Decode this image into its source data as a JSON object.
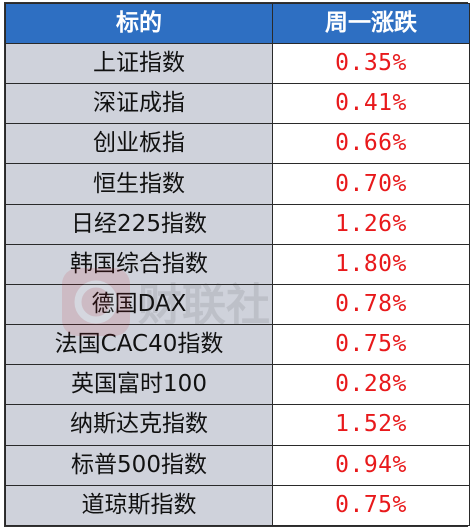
{
  "header": {
    "col_name": "标的",
    "col_change": "周一涨跌"
  },
  "rows": [
    {
      "name": "上证指数",
      "change": "0.35%"
    },
    {
      "name": "深证成指",
      "change": "0.41%"
    },
    {
      "name": "创业板指",
      "change": "0.66%"
    },
    {
      "name": "恒生指数",
      "change": "0.70%"
    },
    {
      "name": "日经225指数",
      "change": "1.26%"
    },
    {
      "name": "韩国综合指数",
      "change": "1.80%"
    },
    {
      "name": "德国DAX",
      "change": "0.78%"
    },
    {
      "name": "法国CAC40指数",
      "change": "0.75%"
    },
    {
      "name": "英国富时100",
      "change": "0.28%"
    },
    {
      "name": "纳斯达克指数",
      "change": "1.52%"
    },
    {
      "name": "标普500指数",
      "change": "0.94%"
    },
    {
      "name": "道琼斯指数",
      "change": "0.75%"
    }
  ],
  "watermark": {
    "text": "财联社"
  },
  "colors": {
    "header_bg": "#2e6fc2",
    "name_bg": "#cfd2db",
    "change_text": "#e8191b"
  }
}
